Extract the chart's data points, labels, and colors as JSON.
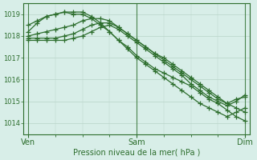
{
  "background_color": "#d8eee8",
  "grid_color": "#b8d4c8",
  "line_color": "#2d6e2d",
  "marker": "+",
  "markersize": 4,
  "linewidth": 0.9,
  "xlabel": "Pression niveau de la mer( hPa )",
  "xtick_labels": [
    "Ven",
    "Sam",
    "Dim"
  ],
  "xtick_positions": [
    0,
    48,
    96
  ],
  "ylim": [
    1013.5,
    1019.5
  ],
  "yticks": [
    1014,
    1015,
    1016,
    1017,
    1018,
    1019
  ],
  "xlim": [
    -2,
    98
  ],
  "series": [
    {
      "x": [
        0,
        4,
        8,
        12,
        16,
        20,
        24,
        28,
        32,
        36,
        40,
        44,
        48,
        52,
        56,
        60,
        64,
        68,
        72,
        76,
        80,
        84,
        88,
        92,
        96
      ],
      "y": [
        1018.2,
        1018.6,
        1018.9,
        1019.0,
        1019.1,
        1019.0,
        1019.0,
        1018.8,
        1018.5,
        1018.2,
        1017.8,
        1017.5,
        1017.1,
        1016.8,
        1016.5,
        1016.3,
        1016.1,
        1015.9,
        1015.7,
        1015.4,
        1015.1,
        1014.9,
        1014.6,
        1014.3,
        1014.1
      ]
    },
    {
      "x": [
        0,
        4,
        8,
        12,
        16,
        20,
        24,
        28,
        32,
        36,
        40,
        44,
        48,
        52,
        56,
        60,
        64,
        68,
        72,
        76,
        80,
        84,
        88,
        92,
        96
      ],
      "y": [
        1018.0,
        1018.1,
        1018.2,
        1018.3,
        1018.4,
        1018.5,
        1018.7,
        1018.8,
        1018.8,
        1018.7,
        1018.4,
        1018.1,
        1017.8,
        1017.5,
        1017.2,
        1017.0,
        1016.7,
        1016.4,
        1016.1,
        1015.8,
        1015.5,
        1015.2,
        1014.9,
        1014.7,
        1014.5
      ]
    },
    {
      "x": [
        0,
        4,
        8,
        12,
        16,
        20,
        24,
        28,
        32,
        36,
        40,
        44,
        48,
        52,
        56,
        60,
        64,
        68,
        72,
        76,
        80,
        84,
        88,
        92,
        96
      ],
      "y": [
        1017.9,
        1017.9,
        1017.9,
        1017.9,
        1018.0,
        1018.1,
        1018.3,
        1018.5,
        1018.6,
        1018.6,
        1018.4,
        1018.1,
        1017.8,
        1017.5,
        1017.2,
        1016.9,
        1016.6,
        1016.3,
        1016.0,
        1015.7,
        1015.4,
        1015.1,
        1014.9,
        1015.1,
        1015.2
      ]
    },
    {
      "x": [
        0,
        4,
        8,
        12,
        16,
        20,
        24,
        28,
        32,
        36,
        40,
        44,
        48,
        52,
        56,
        60,
        64,
        68,
        72,
        76,
        80,
        84,
        88,
        92,
        96
      ],
      "y": [
        1017.8,
        1017.8,
        1017.8,
        1017.8,
        1017.8,
        1017.9,
        1018.0,
        1018.2,
        1018.4,
        1018.5,
        1018.3,
        1018.0,
        1017.7,
        1017.4,
        1017.1,
        1016.8,
        1016.5,
        1016.2,
        1015.8,
        1015.5,
        1015.2,
        1015.0,
        1014.8,
        1015.0,
        1015.3
      ]
    },
    {
      "x": [
        0,
        4,
        8,
        12,
        16,
        20,
        24,
        28,
        32,
        36,
        40,
        44,
        48,
        52,
        56,
        60,
        64,
        68,
        72,
        76,
        80,
        84,
        88,
        92,
        96
      ],
      "y": [
        1018.5,
        1018.7,
        1018.9,
        1019.0,
        1019.1,
        1019.1,
        1019.1,
        1018.9,
        1018.6,
        1018.2,
        1017.8,
        1017.4,
        1017.0,
        1016.7,
        1016.4,
        1016.1,
        1015.8,
        1015.5,
        1015.2,
        1014.9,
        1014.7,
        1014.5,
        1014.3,
        1014.5,
        1014.7
      ]
    }
  ]
}
